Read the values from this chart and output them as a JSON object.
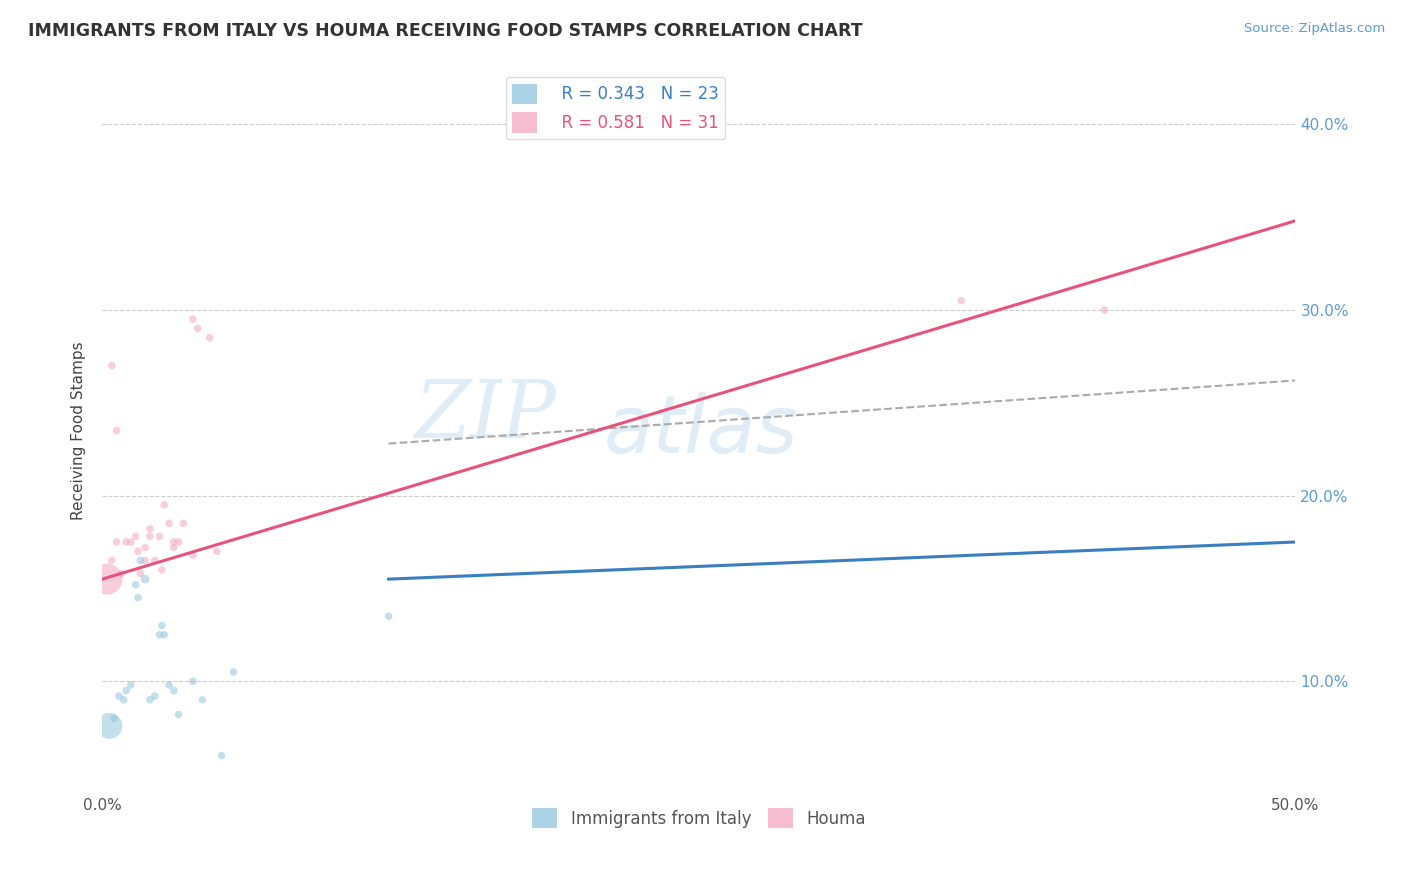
{
  "title": "IMMIGRANTS FROM ITALY VS HOUMA RECEIVING FOOD STAMPS CORRELATION CHART",
  "source_text": "Source: ZipAtlas.com",
  "ylabel": "Receiving Food Stamps",
  "xlim": [
    0.0,
    0.5
  ],
  "ylim": [
    0.04,
    0.43
  ],
  "xticks": [
    0.0,
    0.1,
    0.2,
    0.3,
    0.4,
    0.5
  ],
  "xticklabels": [
    "0.0%",
    "",
    "",
    "",
    "",
    "50.0%"
  ],
  "yticks": [
    0.1,
    0.2,
    0.3,
    0.4
  ],
  "yticklabels": [
    "10.0%",
    "20.0%",
    "30.0%",
    "40.0%"
  ],
  "legend_r1": "R = 0.343",
  "legend_n1": "N = 23",
  "legend_r2": "R = 0.581",
  "legend_n2": "N = 31",
  "blue_color": "#92c5de",
  "pink_color": "#f4a6c0",
  "blue_line_color": "#3a7fc1",
  "pink_line_color": "#e8537a",
  "blue_scatter_x": [
    0.003,
    0.005,
    0.007,
    0.009,
    0.01,
    0.012,
    0.014,
    0.015,
    0.016,
    0.018,
    0.02,
    0.022,
    0.024,
    0.025,
    0.026,
    0.028,
    0.03,
    0.032,
    0.038,
    0.042,
    0.05,
    0.055,
    0.12
  ],
  "blue_scatter_y": [
    0.076,
    0.08,
    0.092,
    0.09,
    0.095,
    0.098,
    0.152,
    0.145,
    0.165,
    0.155,
    0.09,
    0.092,
    0.125,
    0.13,
    0.125,
    0.098,
    0.095,
    0.082,
    0.1,
    0.09,
    0.06,
    0.105,
    0.135
  ],
  "blue_scatter_size": [
    30,
    30,
    30,
    30,
    30,
    30,
    30,
    30,
    30,
    40,
    30,
    30,
    30,
    30,
    30,
    30,
    30,
    30,
    30,
    30,
    30,
    30,
    30
  ],
  "blue_large_idx": 0,
  "blue_large_size": 350,
  "pink_scatter_x": [
    0.002,
    0.004,
    0.004,
    0.006,
    0.006,
    0.008,
    0.01,
    0.012,
    0.014,
    0.015,
    0.016,
    0.018,
    0.018,
    0.02,
    0.02,
    0.022,
    0.024,
    0.025,
    0.026,
    0.028,
    0.03,
    0.03,
    0.032,
    0.034,
    0.038,
    0.038,
    0.04,
    0.045,
    0.048,
    0.36,
    0.42
  ],
  "pink_scatter_y": [
    0.155,
    0.27,
    0.165,
    0.235,
    0.175,
    0.158,
    0.175,
    0.175,
    0.178,
    0.17,
    0.158,
    0.165,
    0.172,
    0.178,
    0.182,
    0.165,
    0.178,
    0.16,
    0.195,
    0.185,
    0.172,
    0.175,
    0.175,
    0.185,
    0.168,
    0.295,
    0.29,
    0.285,
    0.17,
    0.305,
    0.3
  ],
  "pink_scatter_size": [
    500,
    30,
    30,
    30,
    30,
    30,
    30,
    30,
    30,
    30,
    30,
    30,
    30,
    30,
    30,
    30,
    30,
    30,
    30,
    30,
    30,
    30,
    30,
    30,
    30,
    30,
    30,
    30,
    30,
    30,
    30
  ],
  "blue_line_x_start": 0.12,
  "blue_line_x_end": 0.5,
  "blue_line_y_start": 0.155,
  "blue_line_y_end": 0.175,
  "pink_line_x_start": 0.0,
  "pink_line_x_end": 0.5,
  "pink_line_y_start": 0.155,
  "pink_line_y_end": 0.348,
  "dashed_line_x_start": 0.12,
  "dashed_line_x_end": 0.5,
  "dashed_line_y_start": 0.228,
  "dashed_line_y_end": 0.262,
  "watermark_zip": "ZIP",
  "watermark_atlas": "atlas"
}
